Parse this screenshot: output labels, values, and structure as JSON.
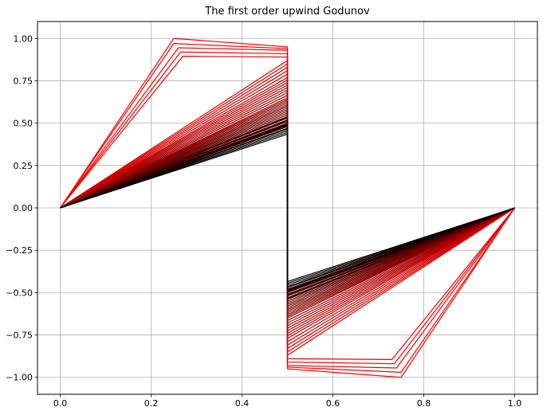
{
  "chart_data": {
    "type": "line",
    "title": "The first order upwind Godunov",
    "xlabel": "",
    "ylabel": "",
    "xlim": [
      -0.05,
      1.05
    ],
    "ylim": [
      -1.1,
      1.1
    ],
    "xticks": [
      0.0,
      0.2,
      0.4,
      0.6,
      0.8,
      1.0
    ],
    "xtick_labels": [
      "0.0",
      "0.2",
      "0.4",
      "0.6",
      "0.8",
      "1.0"
    ],
    "yticks": [
      -1.0,
      -0.75,
      -0.5,
      -0.25,
      0.0,
      0.25,
      0.5,
      0.75,
      1.0
    ],
    "ytick_labels": [
      "−1.00",
      "−0.75",
      "−0.50",
      "−0.25",
      "0.00",
      "0.25",
      "0.50",
      "0.75",
      "1.00"
    ],
    "grid": true,
    "legend": false,
    "color_start": "#ff0000",
    "color_end": "#000000",
    "series_count": 45,
    "series": [
      {
        "x": [
          0,
          0.25,
          0.5,
          0.5,
          0.75,
          1
        ],
        "y": [
          0,
          1,
          0.95,
          -0.95,
          -1,
          0
        ]
      },
      {
        "x": [
          0,
          0.25,
          0.5,
          0.5,
          0.75,
          1
        ],
        "y": [
          0,
          0.97,
          0.94,
          -0.94,
          -0.97,
          0
        ]
      },
      {
        "x": [
          0,
          0.26,
          0.5,
          0.5,
          0.74,
          1
        ],
        "y": [
          0,
          0.945,
          0.93,
          -0.93,
          -0.945,
          0
        ]
      },
      {
        "x": [
          0,
          0.265,
          0.5,
          0.5,
          0.735,
          1
        ],
        "y": [
          0,
          0.92,
          0.91,
          -0.91,
          -0.92,
          0
        ]
      },
      {
        "x": [
          0,
          0.27,
          0.5,
          0.5,
          0.73,
          1
        ],
        "y": [
          0,
          0.895,
          0.89,
          -0.89,
          -0.895,
          0
        ]
      },
      {
        "x": [
          0,
          0.5,
          0.5,
          1
        ],
        "y": [
          0,
          0.87,
          -0.87,
          0
        ]
      },
      {
        "x": [
          0,
          0.5,
          0.5,
          1
        ],
        "y": [
          0,
          0.85,
          -0.85,
          0
        ]
      },
      {
        "x": [
          0,
          0.5,
          0.5,
          1
        ],
        "y": [
          0,
          0.83,
          -0.83,
          0
        ]
      },
      {
        "x": [
          0,
          0.5,
          0.5,
          1
        ],
        "y": [
          0,
          0.81,
          -0.81,
          0
        ]
      },
      {
        "x": [
          0,
          0.5,
          0.5,
          1
        ],
        "y": [
          0,
          0.79,
          -0.79,
          0
        ]
      },
      {
        "x": [
          0,
          0.5,
          0.5,
          1
        ],
        "y": [
          0,
          0.77,
          -0.77,
          0
        ]
      },
      {
        "x": [
          0,
          0.5,
          0.5,
          1
        ],
        "y": [
          0,
          0.755,
          -0.755,
          0
        ]
      },
      {
        "x": [
          0,
          0.5,
          0.5,
          1
        ],
        "y": [
          0,
          0.74,
          -0.74,
          0
        ]
      },
      {
        "x": [
          0,
          0.5,
          0.5,
          1
        ],
        "y": [
          0,
          0.725,
          -0.725,
          0
        ]
      },
      {
        "x": [
          0,
          0.5,
          0.5,
          1
        ],
        "y": [
          0,
          0.71,
          -0.71,
          0
        ]
      },
      {
        "x": [
          0,
          0.5,
          0.5,
          1
        ],
        "y": [
          0,
          0.695,
          -0.695,
          0
        ]
      },
      {
        "x": [
          0,
          0.5,
          0.5,
          1
        ],
        "y": [
          0,
          0.68,
          -0.68,
          0
        ]
      },
      {
        "x": [
          0,
          0.5,
          0.5,
          1
        ],
        "y": [
          0,
          0.665,
          -0.665,
          0
        ]
      },
      {
        "x": [
          0,
          0.5,
          0.5,
          1
        ],
        "y": [
          0,
          0.65,
          -0.65,
          0
        ]
      },
      {
        "x": [
          0,
          0.5,
          0.5,
          1
        ],
        "y": [
          0,
          0.64,
          -0.64,
          0
        ]
      },
      {
        "x": [
          0,
          0.5,
          0.5,
          1
        ],
        "y": [
          0,
          0.63,
          -0.63,
          0
        ]
      },
      {
        "x": [
          0,
          0.5,
          0.5,
          1
        ],
        "y": [
          0,
          0.62,
          -0.62,
          0
        ]
      },
      {
        "x": [
          0,
          0.5,
          0.5,
          1
        ],
        "y": [
          0,
          0.61,
          -0.61,
          0
        ]
      },
      {
        "x": [
          0,
          0.5,
          0.5,
          1
        ],
        "y": [
          0,
          0.6,
          -0.6,
          0
        ]
      },
      {
        "x": [
          0,
          0.5,
          0.5,
          1
        ],
        "y": [
          0,
          0.59,
          -0.59,
          0
        ]
      },
      {
        "x": [
          0,
          0.5,
          0.5,
          1
        ],
        "y": [
          0,
          0.58,
          -0.58,
          0
        ]
      },
      {
        "x": [
          0,
          0.5,
          0.5,
          1
        ],
        "y": [
          0,
          0.57,
          -0.57,
          0
        ]
      },
      {
        "x": [
          0,
          0.5,
          0.5,
          1
        ],
        "y": [
          0,
          0.56,
          -0.56,
          0
        ]
      },
      {
        "x": [
          0,
          0.5,
          0.5,
          1
        ],
        "y": [
          0,
          0.55,
          -0.55,
          0
        ]
      },
      {
        "x": [
          0,
          0.5,
          0.5,
          1
        ],
        "y": [
          0,
          0.54,
          -0.54,
          0
        ]
      },
      {
        "x": [
          0,
          0.5,
          0.5,
          1
        ],
        "y": [
          0,
          0.535,
          -0.535,
          0
        ]
      },
      {
        "x": [
          0,
          0.5,
          0.5,
          1
        ],
        "y": [
          0,
          0.53,
          -0.53,
          0
        ]
      },
      {
        "x": [
          0,
          0.5,
          0.5,
          1
        ],
        "y": [
          0,
          0.52,
          -0.52,
          0
        ]
      },
      {
        "x": [
          0,
          0.5,
          0.5,
          1
        ],
        "y": [
          0,
          0.515,
          -0.515,
          0
        ]
      },
      {
        "x": [
          0,
          0.5,
          0.5,
          1
        ],
        "y": [
          0,
          0.51,
          -0.51,
          0
        ]
      },
      {
        "x": [
          0,
          0.5,
          0.5,
          1
        ],
        "y": [
          0,
          0.5,
          -0.5,
          0
        ]
      },
      {
        "x": [
          0,
          0.5,
          0.5,
          1
        ],
        "y": [
          0,
          0.495,
          -0.495,
          0
        ]
      },
      {
        "x": [
          0,
          0.5,
          0.5,
          1
        ],
        "y": [
          0,
          0.49,
          -0.49,
          0
        ]
      },
      {
        "x": [
          0,
          0.5,
          0.5,
          1
        ],
        "y": [
          0,
          0.485,
          -0.485,
          0
        ]
      },
      {
        "x": [
          0,
          0.5,
          0.5,
          1
        ],
        "y": [
          0,
          0.48,
          -0.48,
          0
        ]
      },
      {
        "x": [
          0,
          0.5,
          0.5,
          1
        ],
        "y": [
          0,
          0.47,
          -0.47,
          0
        ]
      },
      {
        "x": [
          0,
          0.5,
          0.5,
          1
        ],
        "y": [
          0,
          0.465,
          -0.465,
          0
        ]
      },
      {
        "x": [
          0,
          0.5,
          0.5,
          1
        ],
        "y": [
          0,
          0.455,
          -0.455,
          0
        ]
      },
      {
        "x": [
          0,
          0.5,
          0.5,
          1
        ],
        "y": [
          0,
          0.445,
          -0.445,
          0
        ]
      },
      {
        "x": [
          0,
          0.5,
          0.5,
          1
        ],
        "y": [
          0,
          0.435,
          -0.435,
          0
        ]
      }
    ]
  }
}
